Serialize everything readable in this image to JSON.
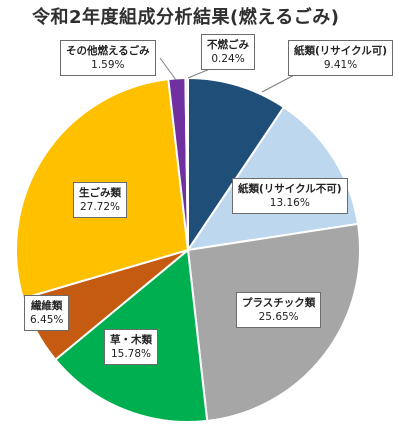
{
  "chart_data": {
    "type": "pie",
    "title": "令和2年度組成分析結果(燃えるごみ)",
    "slices": [
      {
        "label": "紙類(リサイクル可)",
        "value_text": "9.41%",
        "value": 9.41,
        "color": "#1f4e79"
      },
      {
        "label": "紙類(リサイクル不可)",
        "value_text": "13.16%",
        "value": 13.16,
        "color": "#bdd7ee"
      },
      {
        "label": "プラスチック類",
        "value_text": "25.65%",
        "value": 25.65,
        "color": "#a6a6a6"
      },
      {
        "label": "草・木類",
        "value_text": "15.78%",
        "value": 15.78,
        "color": "#00b050"
      },
      {
        "label": "繊維類",
        "value_text": "6.45%",
        "value": 6.45,
        "color": "#c55a11"
      },
      {
        "label": "生ごみ類",
        "value_text": "27.72%",
        "value": 27.72,
        "color": "#ffc000"
      },
      {
        "label": "その他燃えるごみ",
        "value_text": "1.59%",
        "value": 1.59,
        "color": "#7030a0"
      },
      {
        "label": "不燃ごみ",
        "value_text": "0.24%",
        "value": 0.24,
        "color": "#d9d9d9"
      }
    ]
  }
}
